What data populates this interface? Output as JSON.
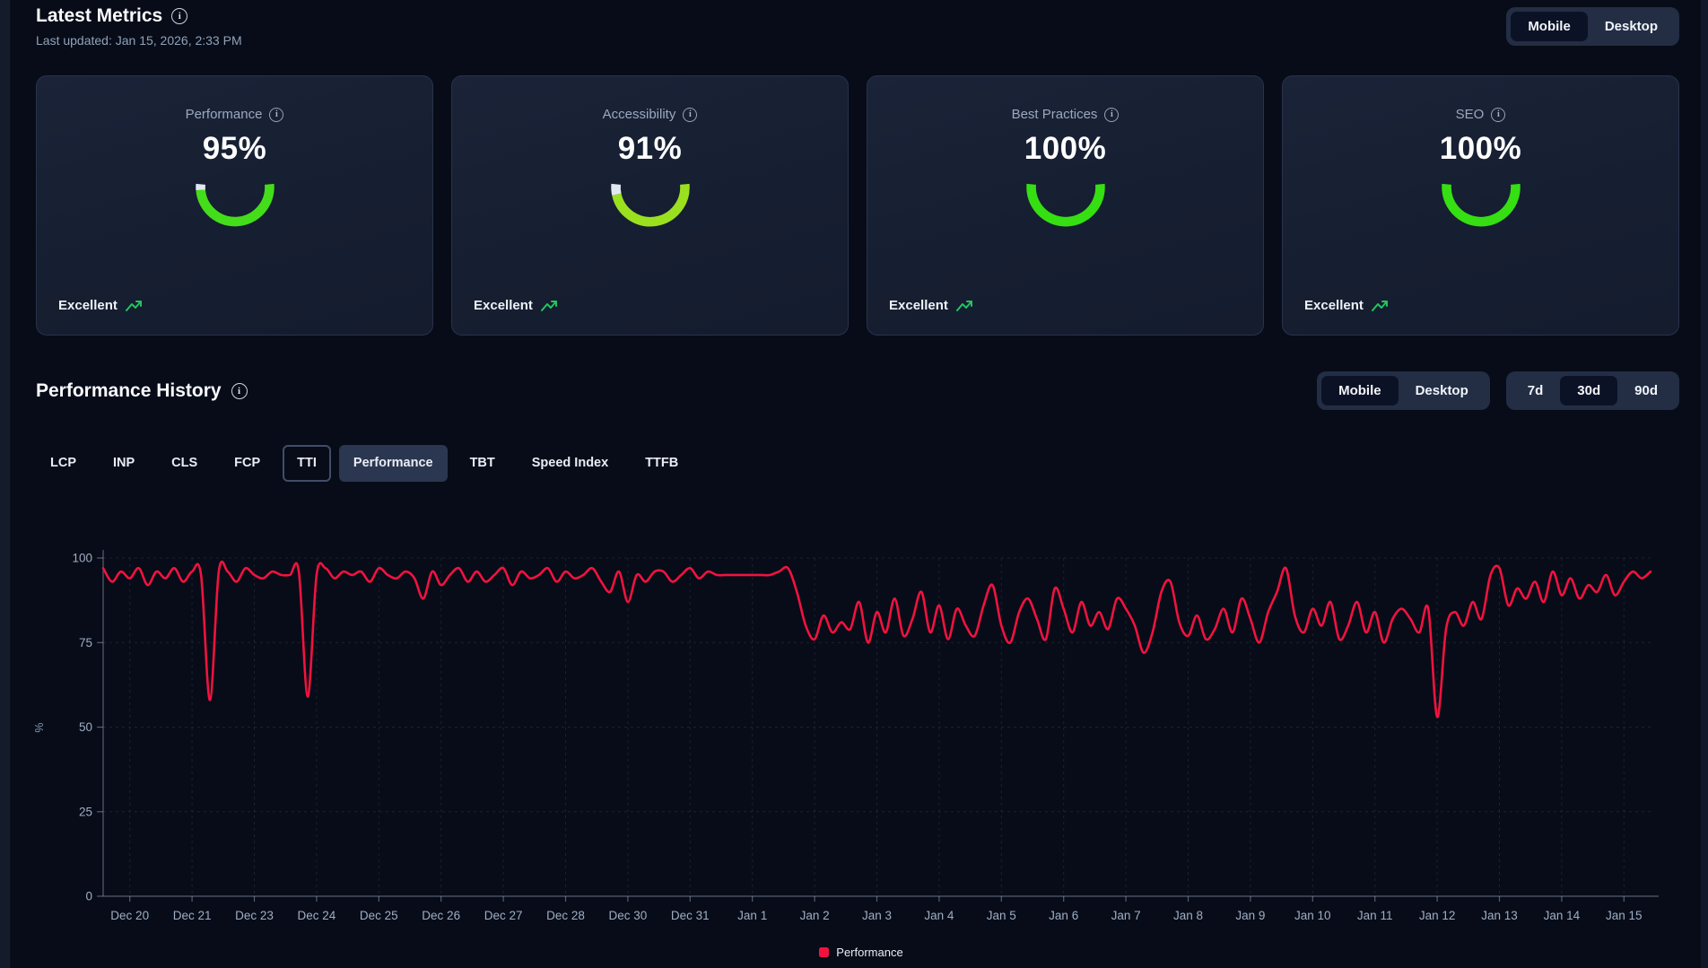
{
  "app": {
    "background": "#070c18",
    "status_icon_color": "#22c55e",
    "gauge_track_color": "#e2e8f0"
  },
  "header": {
    "title": "Latest Metrics",
    "last_updated": "Last updated: Jan 15, 2026, 2:33 PM",
    "device_toggle": {
      "options": [
        "Mobile",
        "Desktop"
      ],
      "selected": "Mobile"
    }
  },
  "metric_cards": [
    {
      "label": "Performance",
      "score": 95,
      "score_text": "95%",
      "status": "Excellent",
      "arc_color": "#44dd1a"
    },
    {
      "label": "Accessibility",
      "score": 91,
      "score_text": "91%",
      "status": "Excellent",
      "arc_color": "#9ae01f"
    },
    {
      "label": "Best Practices",
      "score": 100,
      "score_text": "100%",
      "status": "Excellent",
      "arc_color": "#35df12"
    },
    {
      "label": "SEO",
      "score": 100,
      "score_text": "100%",
      "status": "Excellent",
      "arc_color": "#35df12"
    }
  ],
  "history": {
    "title": "Performance History",
    "device_toggle": {
      "options": [
        "Mobile",
        "Desktop"
      ],
      "selected": "Mobile"
    },
    "range_toggle": {
      "options": [
        "7d",
        "30d",
        "90d"
      ],
      "selected": "30d"
    },
    "tabs": [
      {
        "label": "LCP"
      },
      {
        "label": "INP"
      },
      {
        "label": "CLS"
      },
      {
        "label": "FCP"
      },
      {
        "label": "TTI",
        "focused": true
      },
      {
        "label": "Performance",
        "selected": true
      },
      {
        "label": "TBT"
      },
      {
        "label": "Speed Index"
      },
      {
        "label": "TTFB"
      }
    ]
  },
  "chart_data": {
    "type": "line",
    "title": "",
    "xlabel": "",
    "ylabel": "%",
    "ylim": [
      0,
      100
    ],
    "yticks": [
      0,
      25,
      50,
      75,
      100
    ],
    "grid": true,
    "legend_position": "bottom",
    "categories": [
      "Dec 20",
      "Dec 21",
      "Dec 23",
      "Dec 24",
      "Dec 25",
      "Dec 26",
      "Dec 27",
      "Dec 28",
      "Dec 30",
      "Dec 31",
      "Jan 1",
      "Jan 2",
      "Jan 3",
      "Jan 4",
      "Jan 5",
      "Jan 6",
      "Jan 7",
      "Jan 8",
      "Jan 9",
      "Jan 10",
      "Jan 11",
      "Jan 12",
      "Jan 13",
      "Jan 14",
      "Jan 15"
    ],
    "points_per_category": 7,
    "series": [
      {
        "name": "Performance",
        "color": "#f2123f",
        "values": [
          97,
          93,
          96,
          94,
          97,
          92,
          96,
          94,
          97,
          93,
          96,
          95,
          58,
          96,
          96,
          93,
          97,
          95,
          94,
          96,
          95,
          95,
          96,
          59,
          95,
          97,
          94,
          96,
          95,
          96,
          93,
          97,
          95,
          94,
          96,
          94,
          88,
          96,
          92,
          95,
          97,
          93,
          96,
          93,
          95,
          97,
          92,
          96,
          94,
          95,
          97,
          93,
          96,
          94,
          95,
          97,
          93,
          90,
          96,
          87,
          95,
          93,
          96,
          96,
          93,
          95,
          97,
          94,
          96,
          95,
          95,
          95,
          95,
          95,
          95,
          95,
          96,
          97,
          90,
          80,
          76,
          83,
          78,
          81,
          79,
          87,
          75,
          84,
          78,
          88,
          77,
          82,
          90,
          78,
          86,
          76,
          85,
          80,
          77,
          86,
          92,
          80,
          75,
          84,
          88,
          82,
          76,
          91,
          85,
          78,
          87,
          80,
          84,
          79,
          88,
          85,
          80,
          72,
          78,
          90,
          93,
          81,
          77,
          83,
          76,
          79,
          85,
          78,
          88,
          82,
          75,
          84,
          90,
          97,
          83,
          78,
          85,
          80,
          87,
          76,
          80,
          87,
          78,
          84,
          75,
          82,
          85,
          82,
          78,
          85,
          53,
          79,
          84,
          80,
          87,
          82,
          95,
          97,
          86,
          91,
          88,
          93,
          87,
          96,
          89,
          94,
          88,
          92,
          90,
          95,
          89,
          93,
          96,
          94,
          96
        ]
      }
    ]
  },
  "icons": {
    "info": "i",
    "trend_up": "trending-up-arrow",
    "legend_swatch": "square"
  }
}
